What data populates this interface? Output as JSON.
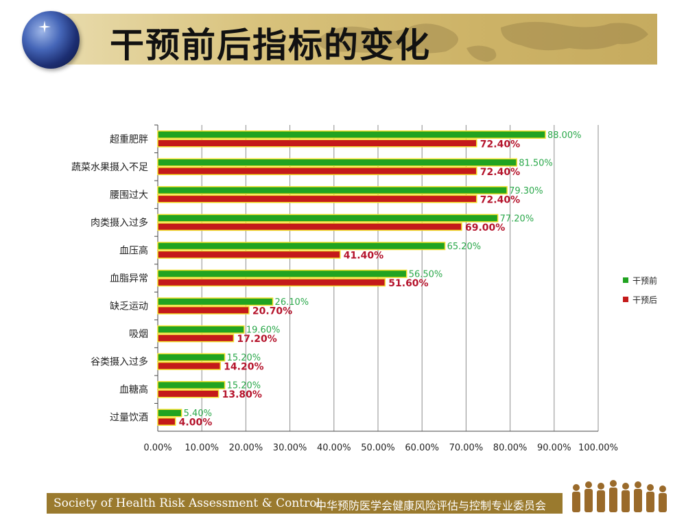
{
  "page": {
    "title": "干预前后指标的变化"
  },
  "footer": {
    "society_en": "Society of Health Risk Assessment & Control",
    "society_cn": "中华预防医学会健康风险评估与控制专业委员会"
  },
  "colors": {
    "before": "#21a321",
    "after": "#c41a1a",
    "bar_edge": "#f2e02a",
    "before_label": "#2aa84a",
    "after_label": "#b5142c"
  },
  "chart_data": {
    "type": "bar",
    "orientation": "horizontal",
    "categories": [
      "超重肥胖",
      "蔬菜水果摄入不足",
      "腰围过大",
      "肉类摄入过多",
      "血压高",
      "血脂异常",
      "缺乏运动",
      "吸烟",
      "谷类摄入过多",
      "血糖高",
      "过量饮酒"
    ],
    "series": [
      {
        "name": "干预前",
        "values": [
          88.0,
          81.5,
          79.3,
          77.2,
          65.2,
          56.5,
          26.1,
          19.6,
          15.2,
          15.2,
          5.4
        ],
        "labels": [
          "88.00%",
          "81.50%",
          "79.30%",
          "77.20%",
          "65.20%",
          "56.50%",
          "26.10%",
          "19.60%",
          "15.20%",
          "15.20%",
          "5.40%"
        ]
      },
      {
        "name": "干预后",
        "values": [
          72.4,
          72.4,
          72.4,
          69.0,
          41.4,
          51.6,
          20.7,
          17.2,
          14.2,
          13.8,
          4.0
        ],
        "labels": [
          "72.40%",
          "72.40%",
          "72.40%",
          "69.00%",
          "41.40%",
          "51.60%",
          "20.70%",
          "17.20%",
          "14.20%",
          "13.80%",
          "4.00%"
        ]
      }
    ],
    "xlim": [
      0,
      100
    ],
    "xticks": [
      "0.00%",
      "10.00%",
      "20.00%",
      "30.00%",
      "40.00%",
      "50.00%",
      "60.00%",
      "70.00%",
      "80.00%",
      "90.00%",
      "100.00%"
    ],
    "grid": true,
    "legend": "right"
  }
}
